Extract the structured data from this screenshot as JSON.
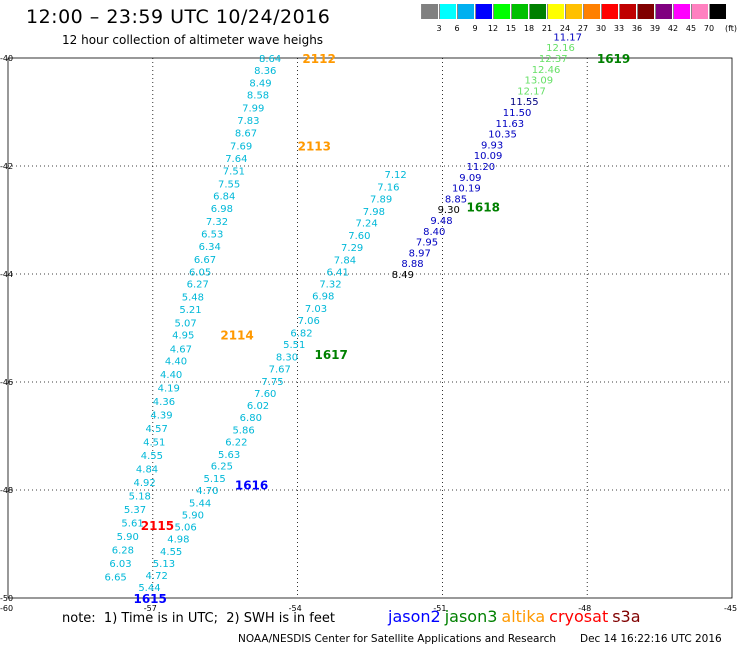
{
  "header": {
    "title": "12:00 – 23:59 UTC 10/24/2016",
    "subtitle": "12 hour collection of altimeter wave heighs"
  },
  "color_scale": {
    "unit": "(ft)",
    "bins": [
      {
        "label": "3",
        "color": "#808080"
      },
      {
        "label": "6",
        "color": "#00ffff"
      },
      {
        "label": "9",
        "color": "#00b0f0"
      },
      {
        "label": "12",
        "color": "#0000ff"
      },
      {
        "label": "15",
        "color": "#00ff00"
      },
      {
        "label": "18",
        "color": "#00c000"
      },
      {
        "label": "21",
        "color": "#008000"
      },
      {
        "label": "24",
        "color": "#ffff00"
      },
      {
        "label": "27",
        "color": "#ffc000"
      },
      {
        "label": "30",
        "color": "#ff8000"
      },
      {
        "label": "33",
        "color": "#ff0000"
      },
      {
        "label": "36",
        "color": "#c00000"
      },
      {
        "label": "39",
        "color": "#800000"
      },
      {
        "label": "42",
        "color": "#800080"
      },
      {
        "label": "45",
        "color": "#ff00ff"
      },
      {
        "label": "70",
        "color": "#ff80c0"
      },
      {
        "label": "",
        "color": "#000000"
      }
    ]
  },
  "colors": {
    "cyan_text": "#00b8d8",
    "blue_text": "#0000c0",
    "lightgreen_text": "#66e066",
    "green_text": "#008000",
    "orange_text": "#ff9900",
    "red_text": "#ff0000",
    "grid": "#000000"
  },
  "chart_data": {
    "type": "scatter",
    "xlim": [
      -60,
      -45
    ],
    "ylim": [
      -50,
      -40
    ],
    "x_ticks": [
      -57,
      -54,
      -51,
      -48
    ],
    "x_tick_labels": [
      "-57",
      "-54",
      "-51",
      "-48"
    ],
    "x_edge_labels": [
      "-60",
      "-45"
    ],
    "y_ticks": [
      -42,
      -44,
      -46,
      -48
    ],
    "y_tick_labels": [
      "-42",
      "-44",
      "-46",
      "-48"
    ],
    "y_edge_labels": [
      "-40",
      "-50"
    ],
    "series": [
      {
        "name": "altika",
        "color": "#00b8d8",
        "points": [
          {
            "x": -54.8,
            "y": -40.0,
            "v": "8.64"
          },
          {
            "x": -54.9,
            "y": -40.22,
            "v": "8.36"
          },
          {
            "x": -55.0,
            "y": -40.45,
            "v": "8.49"
          },
          {
            "x": -55.05,
            "y": -40.68,
            "v": "8.58"
          },
          {
            "x": -55.15,
            "y": -40.92,
            "v": "7.99"
          },
          {
            "x": -55.25,
            "y": -41.15,
            "v": "7.83"
          },
          {
            "x": -55.3,
            "y": -41.38,
            "v": "8.67"
          },
          {
            "x": -55.4,
            "y": -41.62,
            "v": "7.69"
          },
          {
            "x": -55.5,
            "y": -41.85,
            "v": "7.64"
          },
          {
            "x": -55.55,
            "y": -42.08,
            "v": "7.51"
          },
          {
            "x": -55.65,
            "y": -42.32,
            "v": "7.55"
          },
          {
            "x": -55.75,
            "y": -42.55,
            "v": "6.84"
          },
          {
            "x": -55.8,
            "y": -42.78,
            "v": "6.98"
          },
          {
            "x": -55.9,
            "y": -43.02,
            "v": "7.32"
          },
          {
            "x": -56.0,
            "y": -43.25,
            "v": "6.53"
          },
          {
            "x": -56.05,
            "y": -43.48,
            "v": "6.34"
          },
          {
            "x": -56.15,
            "y": -43.72,
            "v": "6.67"
          },
          {
            "x": -56.25,
            "y": -43.95,
            "v": "6.05"
          },
          {
            "x": -56.3,
            "y": -44.18,
            "v": "6.27"
          },
          {
            "x": -56.4,
            "y": -44.42,
            "v": "5.48"
          },
          {
            "x": -56.45,
            "y": -44.65,
            "v": "5.21"
          },
          {
            "x": -56.55,
            "y": -44.9,
            "v": "5.07"
          },
          {
            "x": -56.6,
            "y": -45.12,
            "v": "4.95"
          },
          {
            "x": -56.65,
            "y": -45.38,
            "v": "4.67"
          },
          {
            "x": -56.75,
            "y": -45.6,
            "v": "4.40"
          },
          {
            "x": -56.85,
            "y": -45.85,
            "v": "4.40"
          },
          {
            "x": -56.9,
            "y": -46.1,
            "v": "4.19"
          },
          {
            "x": -57.0,
            "y": -46.35,
            "v": "4.36"
          },
          {
            "x": -57.05,
            "y": -46.6,
            "v": "4.39"
          },
          {
            "x": -57.15,
            "y": -46.85,
            "v": "4.57"
          },
          {
            "x": -57.2,
            "y": -47.1,
            "v": "4.51"
          },
          {
            "x": -57.25,
            "y": -47.35,
            "v": "4.55"
          },
          {
            "x": -57.35,
            "y": -47.6,
            "v": "4.84"
          },
          {
            "x": -57.4,
            "y": -47.85,
            "v": "4.92"
          },
          {
            "x": -57.5,
            "y": -48.1,
            "v": "5.18"
          },
          {
            "x": -57.6,
            "y": -48.35,
            "v": "5.37"
          },
          {
            "x": -57.65,
            "y": -48.6,
            "v": "5.61"
          },
          {
            "x": -57.75,
            "y": -48.85,
            "v": "5.90"
          },
          {
            "x": -57.85,
            "y": -49.1,
            "v": "6.28"
          },
          {
            "x": -57.9,
            "y": -49.35,
            "v": "6.03"
          },
          {
            "x": -58.0,
            "y": -49.6,
            "v": "6.65"
          }
        ],
        "time_labels": [
          {
            "x": -53.9,
            "y": -40.0,
            "t": "2112"
          },
          {
            "x": -54.0,
            "y": -41.62,
            "t": "2113"
          },
          {
            "x": -55.6,
            "y": -45.12,
            "t": "2114"
          }
        ]
      },
      {
        "name": "cryosat",
        "color": "#00b8d8",
        "points": [
          {
            "x": -57.3,
            "y": -49.8,
            "v": "5.44"
          },
          {
            "x": -57.15,
            "y": -49.57,
            "v": "4.72"
          },
          {
            "x": -57.0,
            "y": -49.35,
            "v": "5.13"
          },
          {
            "x": -56.85,
            "y": -49.13,
            "v": "4.55"
          },
          {
            "x": -56.7,
            "y": -48.9,
            "v": "4.98"
          },
          {
            "x": -56.55,
            "y": -48.68,
            "v": "5.06"
          },
          {
            "x": -56.4,
            "y": -48.45,
            "v": "5.90"
          },
          {
            "x": -56.25,
            "y": -48.23,
            "v": "5.44"
          },
          {
            "x": -56.1,
            "y": -48.0,
            "v": "4.70"
          },
          {
            "x": -55.95,
            "y": -47.78,
            "v": "5.15"
          },
          {
            "x": -55.8,
            "y": -47.55,
            "v": "6.25"
          },
          {
            "x": -55.65,
            "y": -47.33,
            "v": "5.63"
          },
          {
            "x": -55.5,
            "y": -47.1,
            "v": "6.22"
          },
          {
            "x": -55.35,
            "y": -46.88,
            "v": "5.86"
          },
          {
            "x": -55.2,
            "y": -46.65,
            "v": "6.80"
          },
          {
            "x": -55.05,
            "y": -46.43,
            "v": "6.02"
          },
          {
            "x": -54.9,
            "y": -46.2,
            "v": "7.60"
          },
          {
            "x": -54.75,
            "y": -45.98,
            "v": "7.75"
          },
          {
            "x": -54.6,
            "y": -45.75,
            "v": "7.67"
          },
          {
            "x": -54.45,
            "y": -45.53,
            "v": "8.30"
          },
          {
            "x": -54.3,
            "y": -45.3,
            "v": "5.51"
          },
          {
            "x": -54.15,
            "y": -45.08,
            "v": "6.82"
          },
          {
            "x": -54.0,
            "y": -44.85,
            "v": "7.06"
          },
          {
            "x": -53.85,
            "y": -44.63,
            "v": "7.03"
          },
          {
            "x": -53.7,
            "y": -44.4,
            "v": "6.98"
          },
          {
            "x": -53.55,
            "y": -44.18,
            "v": "7.32"
          },
          {
            "x": -53.4,
            "y": -43.95,
            "v": "6.41"
          },
          {
            "x": -53.25,
            "y": -43.73,
            "v": "7.84"
          },
          {
            "x": -53.1,
            "y": -43.5,
            "v": "7.29"
          },
          {
            "x": -52.95,
            "y": -43.28,
            "v": "7.60"
          },
          {
            "x": -52.8,
            "y": -43.05,
            "v": "7.24"
          },
          {
            "x": -52.65,
            "y": -42.83,
            "v": "7.98"
          },
          {
            "x": -52.5,
            "y": -42.6,
            "v": "7.89"
          },
          {
            "x": -52.35,
            "y": -42.38,
            "v": "7.16"
          },
          {
            "x": -52.2,
            "y": -42.15,
            "v": "7.12"
          }
        ],
        "time_labels": [
          {
            "x": -57.25,
            "y": -48.65,
            "t": "2115"
          }
        ]
      },
      {
        "name": "jason3",
        "color": "#00b8d8",
        "points": [
          {
            "x": -52.05,
            "y": -44.0,
            "v": "8.49"
          },
          {
            "x": -51.85,
            "y": -43.8,
            "v": "8.88"
          },
          {
            "x": -51.7,
            "y": -43.6,
            "v": "8.97"
          },
          {
            "x": -51.55,
            "y": -43.4,
            "v": "7.95"
          },
          {
            "x": -51.4,
            "y": -43.2,
            "v": "8.40"
          },
          {
            "x": -51.25,
            "y": -43.0,
            "v": "9.48"
          },
          {
            "x": -51.1,
            "y": -42.8,
            "v": "9.30"
          },
          {
            "x": -50.95,
            "y": -42.6,
            "v": "8.85"
          },
          {
            "x": -50.8,
            "y": -42.4,
            "v": "10.19"
          },
          {
            "x": -50.65,
            "y": -42.2,
            "v": "9.09"
          },
          {
            "x": -50.5,
            "y": -42.0,
            "v": "11.20"
          },
          {
            "x": -50.35,
            "y": -41.8,
            "v": "10.09"
          },
          {
            "x": -50.2,
            "y": -41.6,
            "v": "9.93"
          },
          {
            "x": -50.05,
            "y": -41.4,
            "v": "10.35"
          },
          {
            "x": -49.9,
            "y": -41.2,
            "v": "11.63"
          },
          {
            "x": -49.75,
            "y": -41.0,
            "v": "11.50"
          },
          {
            "x": -49.6,
            "y": -40.8,
            "v": "11.55"
          },
          {
            "x": -49.45,
            "y": -40.6,
            "v": "12.17"
          },
          {
            "x": -49.3,
            "y": -40.4,
            "v": "13.09"
          },
          {
            "x": -49.15,
            "y": -40.2,
            "v": "12.46"
          },
          {
            "x": -49.0,
            "y": -40.0,
            "v": "12.37"
          },
          {
            "x": -48.85,
            "y": -39.8,
            "v": "12.16"
          },
          {
            "x": -48.7,
            "y": -39.6,
            "v": "11.17"
          }
        ],
        "point_colors": [
          "#000000",
          "#0000c0",
          "#0000c0",
          "#0000c0",
          "#0000c0",
          "#0000c0",
          "#000000",
          "#0000c0",
          "#0000c0",
          "#0000c0",
          "#0000c0",
          "#0000c0",
          "#0000c0",
          "#0000c0",
          "#0000c0",
          "#0000c0",
          "#000080",
          "#66e066",
          "#66e066",
          "#66e066",
          "#66e066",
          "#66e066",
          "#0000c0"
        ],
        "time_labels": [
          {
            "x": -53.65,
            "y": -45.48,
            "t": "1617"
          },
          {
            "x": -50.5,
            "y": -42.75,
            "t": "1618"
          },
          {
            "x": -47.8,
            "y": -40.0,
            "t": "1619"
          }
        ]
      },
      {
        "name": "jason2",
        "color": "#00b8d8",
        "points": [],
        "time_labels": [
          {
            "x": -55.3,
            "y": -47.9,
            "t": "1616"
          },
          {
            "x": -57.4,
            "y": -50.0,
            "t": "1615"
          }
        ]
      }
    ]
  },
  "note": "note:  1) Time is in UTC;  2) SWH is in feet",
  "legend": [
    {
      "label": "jason2",
      "color": "#0000ff"
    },
    {
      "label": "jason3",
      "color": "#008000"
    },
    {
      "label": "altika",
      "color": "#ff9900"
    },
    {
      "label": "cryosat",
      "color": "#ff0000"
    },
    {
      "label": "s3a",
      "color": "#800000"
    }
  ],
  "footer": {
    "credit": "NOAA/NESDIS Center for Satellite Applications and Research",
    "date": "Dec 14 16:22:16 UTC 2016"
  }
}
